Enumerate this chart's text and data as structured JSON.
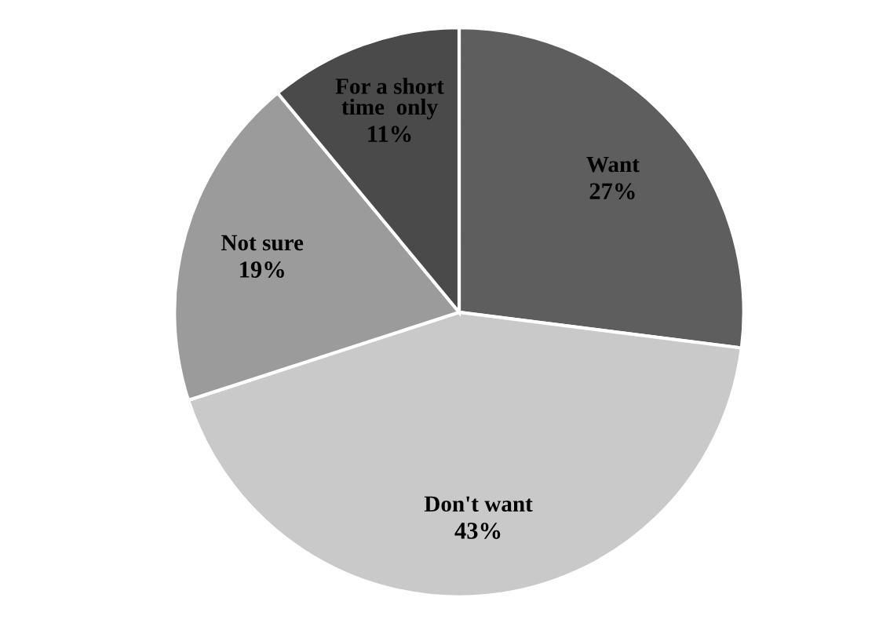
{
  "chart_data": {
    "type": "pie",
    "categories": [
      "Want",
      "Don't want",
      "Not sure",
      "For a short\ntime  only"
    ],
    "values": [
      27,
      43,
      19,
      11
    ],
    "value_labels": [
      "27%",
      "43%",
      "19%",
      "11%"
    ],
    "colors": [
      "#5e5e5e",
      "#c9c9c9",
      "#9b9b9b",
      "#4a4a4a"
    ]
  }
}
